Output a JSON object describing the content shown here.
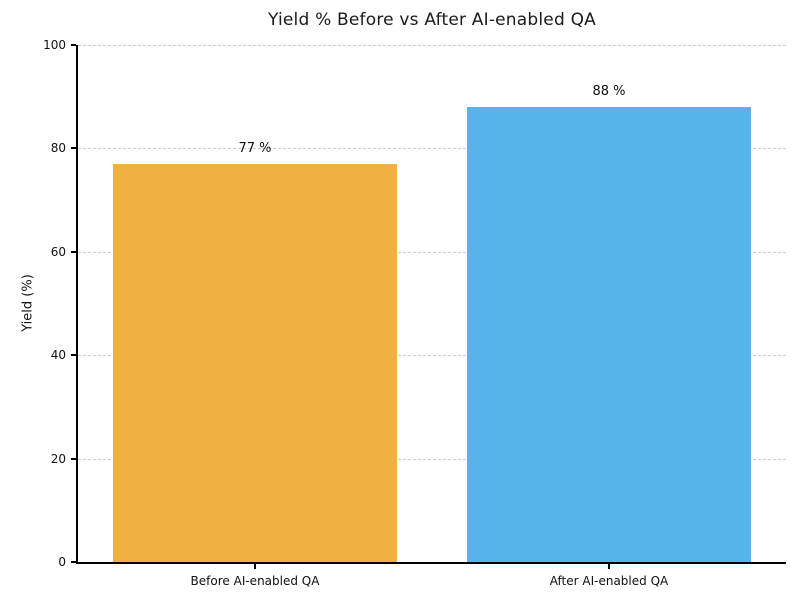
{
  "chart_data": {
    "type": "bar",
    "title": "Yield % Before vs After AI-enabled QA",
    "xlabel": "",
    "ylabel": "Yield (%)",
    "categories": [
      "Before AI-enabled QA",
      "After AI-enabled QA"
    ],
    "values": [
      77,
      88
    ],
    "value_labels": [
      "77 %",
      "88 %"
    ],
    "bar_colors": [
      "#F0B042",
      "#56B4E9"
    ],
    "bar_width_fraction": 0.8,
    "ylim": [
      0,
      100
    ],
    "yticks": [
      0,
      20,
      40,
      60,
      80,
      100
    ],
    "grid": "horizontal-dashed",
    "grid_color": "#cccccc",
    "legend_position": "none",
    "background_color": "#ffffff",
    "axis_color": "#000000",
    "title_color": "#1a1a1a"
  }
}
